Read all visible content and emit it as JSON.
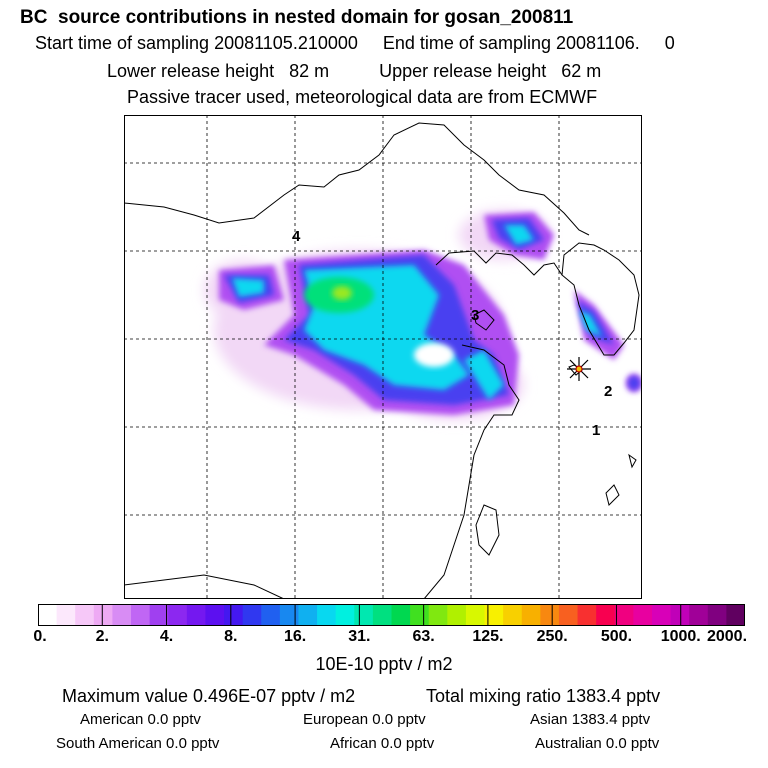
{
  "header": {
    "title": "BC  source contributions in nested domain for gosan_200811",
    "sampling": "Start time of sampling 20081105.210000     End time of sampling 20081106.     0",
    "release": "Lower release height   82 m          Upper release height   62 m",
    "tracer": "Passive tracer used, meteorological data are from ECMWF"
  },
  "map": {
    "labels": [
      "4",
      "3",
      "2",
      "1"
    ],
    "station_marker": "station-star-icon"
  },
  "legend": {
    "ticks": [
      "0.",
      "2.",
      "4.",
      "8.",
      "16.",
      "31.",
      "63.",
      "125.",
      "250.",
      "500.",
      "1000.",
      "2000."
    ],
    "units": "10E-10 pptv / m2",
    "colors": [
      "#ffffff",
      "#fce8fc",
      "#f6c8f8",
      "#eeaaf4",
      "#d88cf4",
      "#c066f4",
      "#a040f0",
      "#8c28f0",
      "#7418f0",
      "#5c10f0",
      "#4418f0",
      "#3038f0",
      "#2060f0",
      "#1888f0",
      "#10b0f0",
      "#08d8f0",
      "#00f0e0",
      "#00e8b0",
      "#00e080",
      "#00d850",
      "#40e020",
      "#80e810",
      "#b0f000",
      "#d8f800",
      "#f8f000",
      "#f8d000",
      "#f8b000",
      "#f88810",
      "#f86020",
      "#f83030",
      "#f80050",
      "#f00080",
      "#e800a0",
      "#d800b8",
      "#c000b8",
      "#a00098",
      "#800080",
      "#600060"
    ]
  },
  "stats": {
    "maximum": "Maximum value  0.496E-07 pptv / m2",
    "total": "Total mixing ratio     1383.4 pptv",
    "american": "American          0.0 pptv",
    "european": "European          0.0 pptv",
    "asian": "Asian     1383.4 pptv",
    "south_american": "South American          0.0 pptv",
    "african": "African          0.0 pptv",
    "australian": "Australian          0.0 pptv"
  }
}
